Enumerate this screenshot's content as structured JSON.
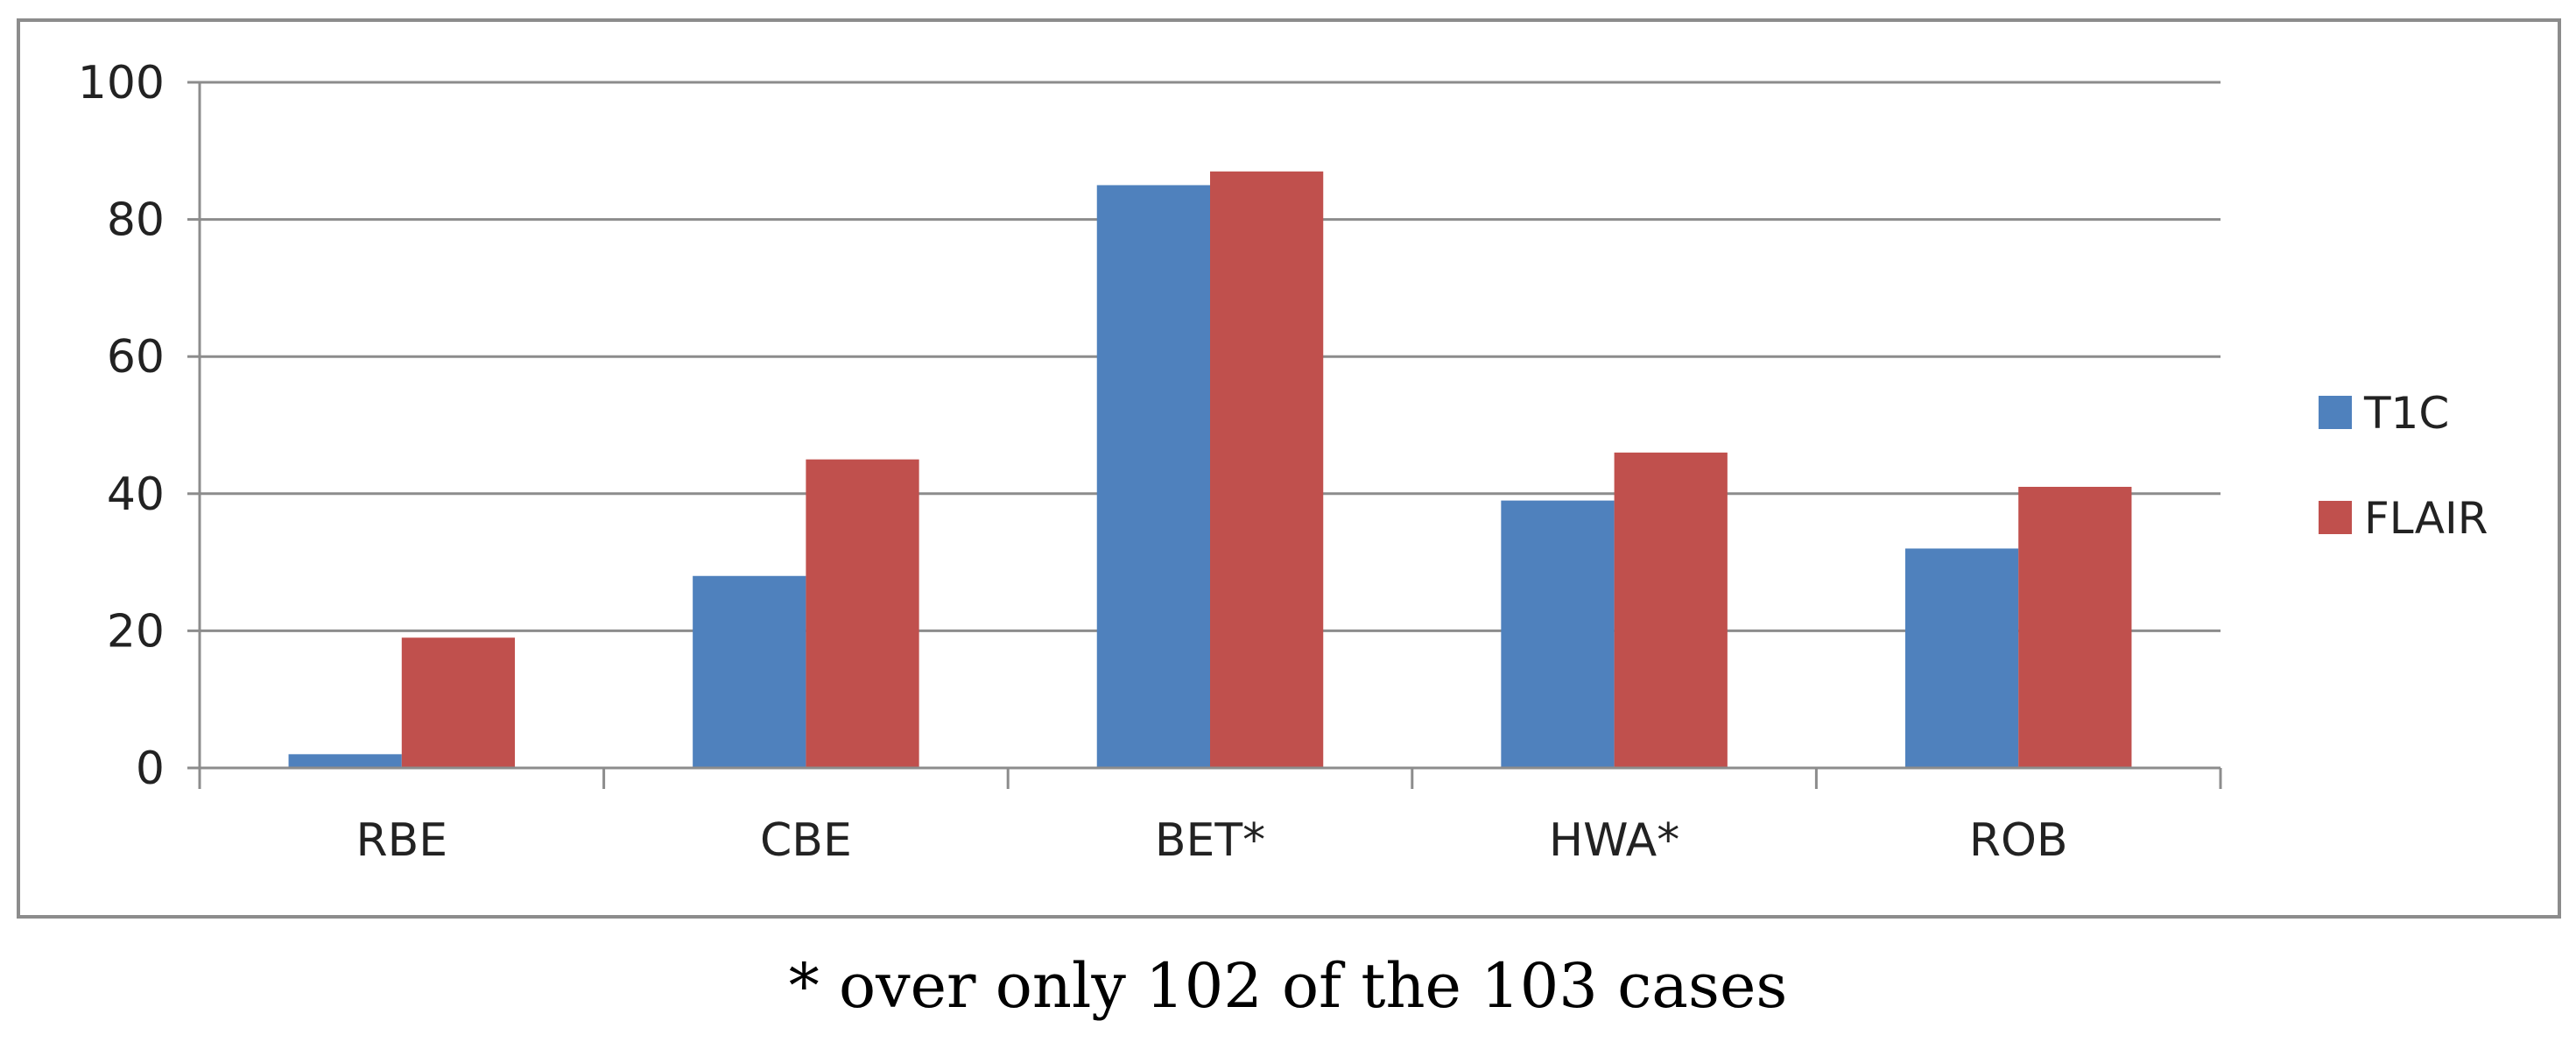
{
  "chart_data": {
    "type": "bar",
    "categories": [
      "RBE",
      "CBE",
      "BET*",
      "HWA*",
      "ROB"
    ],
    "series": [
      {
        "name": "T1C",
        "values": [
          2,
          28,
          85,
          39,
          32
        ],
        "color": "#4F81BD"
      },
      {
        "name": "FLAIR",
        "values": [
          19,
          45,
          87,
          46,
          41
        ],
        "color": "#C0504D"
      }
    ],
    "ylim": [
      0,
      100
    ],
    "yticks": [
      "0",
      "20",
      "40",
      "60",
      "80",
      "100"
    ],
    "grid": true,
    "legend_placement": "right"
  },
  "footnote": "* over only 102 of the 103 cases"
}
